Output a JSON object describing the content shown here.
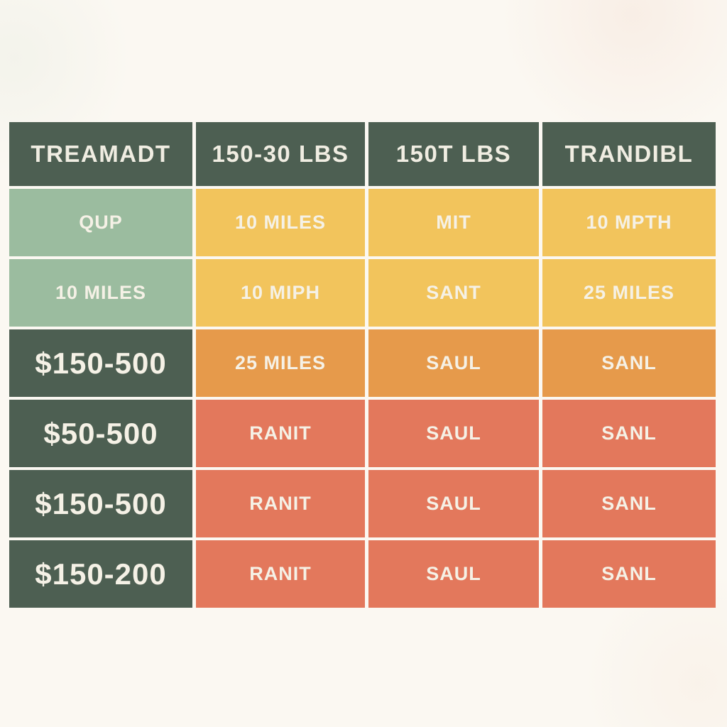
{
  "chart_data": {
    "type": "table",
    "title": "",
    "columns": [
      "TREAMADT",
      "150-30 LBS",
      "150T LBS",
      "TRANDIBL"
    ],
    "rows": [
      {
        "cells": [
          {
            "text": "QUP",
            "color": "sage",
            "large": false
          },
          {
            "text": "10 MILES",
            "color": "yellow",
            "large": false
          },
          {
            "text": "MIT",
            "color": "yellow",
            "large": false
          },
          {
            "text": "10 MPTH",
            "color": "yellow",
            "large": false
          }
        ]
      },
      {
        "cells": [
          {
            "text": "10 MILES",
            "color": "sage",
            "large": false
          },
          {
            "text": "10 MIPH",
            "color": "yellow",
            "large": false
          },
          {
            "text": "SANT",
            "color": "yellow",
            "large": false
          },
          {
            "text": "25 MILES",
            "color": "yellow",
            "large": false
          }
        ]
      },
      {
        "cells": [
          {
            "text": "$150-500",
            "color": "darkgreen",
            "large": true
          },
          {
            "text": "25 MILES",
            "color": "orange",
            "large": false
          },
          {
            "text": "SAUL",
            "color": "orange",
            "large": false
          },
          {
            "text": "SANL",
            "color": "orange",
            "large": false
          }
        ]
      },
      {
        "cells": [
          {
            "text": "$50-500",
            "color": "darkgreen",
            "large": true
          },
          {
            "text": "RANIT",
            "color": "red",
            "large": false
          },
          {
            "text": "SAUL",
            "color": "red",
            "large": false
          },
          {
            "text": "SANL",
            "color": "red",
            "large": false
          }
        ]
      },
      {
        "cells": [
          {
            "text": "$150-500",
            "color": "darkgreen",
            "large": true
          },
          {
            "text": "RANIT",
            "color": "red",
            "large": false
          },
          {
            "text": "SAUL",
            "color": "red",
            "large": false
          },
          {
            "text": "SANL",
            "color": "red",
            "large": false
          }
        ]
      },
      {
        "cells": [
          {
            "text": "$150-200",
            "color": "darkgreen",
            "large": true
          },
          {
            "text": "RANIT",
            "color": "red",
            "large": false
          },
          {
            "text": "SAUL",
            "color": "red",
            "large": false
          },
          {
            "text": "SANL",
            "color": "red",
            "large": false
          }
        ]
      }
    ]
  },
  "colors": {
    "darkgreen": "#4d5f52",
    "sage": "#9bbc9f",
    "yellow": "#f2c45c",
    "orange": "#e69a4b",
    "red": "#e3785c",
    "background": "#fbf8f2",
    "cell_text": "#f5f1e6",
    "header_text": "#f0ede2"
  }
}
